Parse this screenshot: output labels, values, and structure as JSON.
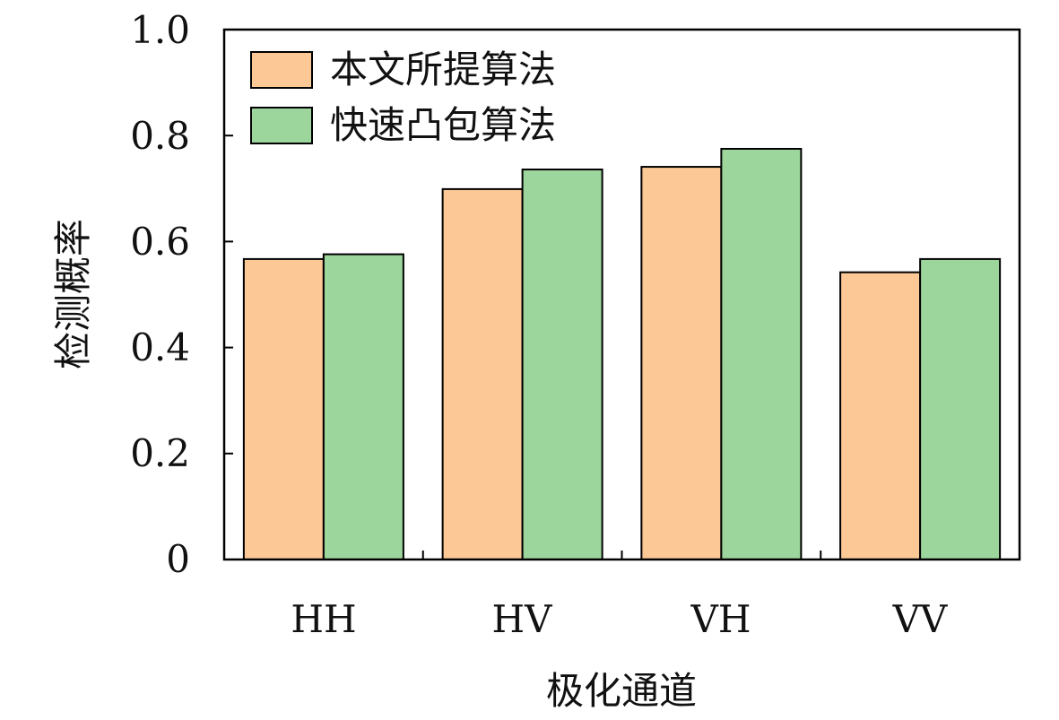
{
  "chart_data": {
    "type": "bar",
    "title": "",
    "xlabel": "极化通道",
    "ylabel": "检测概率",
    "categories": [
      "HH",
      "HV",
      "VH",
      "VV"
    ],
    "ylim": [
      0,
      1.0
    ],
    "yticks": [
      0,
      0.2,
      0.4,
      0.6,
      0.8,
      1.0
    ],
    "ytick_labels": [
      "0",
      "0.2",
      "0.4",
      "0.6",
      "0.8",
      "1.0"
    ],
    "grid": false,
    "legend_position": "top-left",
    "series": [
      {
        "name": "本文所提算法",
        "color": "#fcc896",
        "values": [
          0.567,
          0.699,
          0.741,
          0.542
        ]
      },
      {
        "name": "快速凸包算法",
        "color": "#9dd69c",
        "values": [
          0.576,
          0.736,
          0.775,
          0.567
        ]
      }
    ]
  }
}
